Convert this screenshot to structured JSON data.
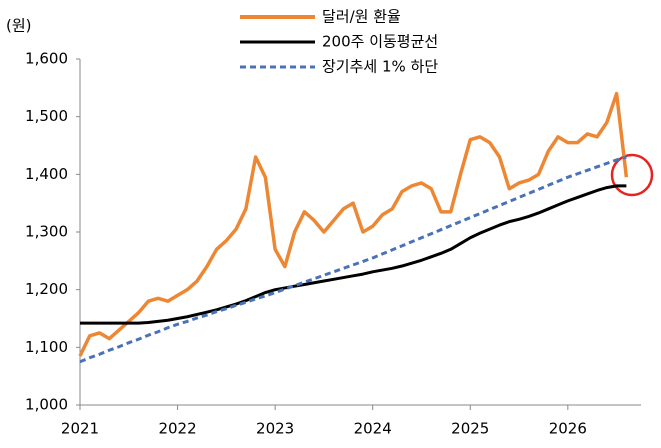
{
  "chart_data": {
    "type": "line",
    "y_label": "(원)",
    "x": [
      2021.0,
      2021.1,
      2021.2,
      2021.3,
      2021.4,
      2021.5,
      2021.6,
      2021.7,
      2021.8,
      2021.9,
      2022.0,
      2022.1,
      2022.2,
      2022.3,
      2022.4,
      2022.5,
      2022.6,
      2022.7,
      2022.8,
      2022.9,
      2023.0,
      2023.1,
      2023.2,
      2023.3,
      2023.4,
      2023.5,
      2023.6,
      2023.7,
      2023.8,
      2023.9,
      2024.0,
      2024.1,
      2024.2,
      2024.3,
      2024.4,
      2024.5,
      2024.6,
      2024.7,
      2024.8,
      2024.9,
      2025.0,
      2025.1,
      2025.2,
      2025.3,
      2025.4,
      2025.5,
      2025.6,
      2025.7,
      2025.8,
      2025.9,
      2026.0,
      2026.1,
      2026.2,
      2026.3,
      2026.4,
      2026.5,
      2026.6
    ],
    "series": [
      {
        "name": "달러/원 환율",
        "color": "#ed8733",
        "style": "solid",
        "values": [
          1085,
          1120,
          1125,
          1115,
          1130,
          1145,
          1160,
          1180,
          1185,
          1180,
          1190,
          1200,
          1215,
          1240,
          1270,
          1285,
          1305,
          1340,
          1430,
          1395,
          1270,
          1240,
          1300,
          1335,
          1320,
          1300,
          1320,
          1340,
          1350,
          1300,
          1310,
          1330,
          1340,
          1370,
          1380,
          1385,
          1375,
          1335,
          1335,
          1400,
          1460,
          1465,
          1455,
          1430,
          1375,
          1385,
          1390,
          1400,
          1440,
          1465,
          1455,
          1455,
          1470,
          1465,
          1490,
          1540,
          1395
        ]
      },
      {
        "name": "200주 이동평균선",
        "color": "#000000",
        "style": "solid",
        "values": [
          1142,
          1142,
          1142,
          1142,
          1142,
          1142,
          1142,
          1143,
          1145,
          1147,
          1150,
          1153,
          1157,
          1161,
          1165,
          1170,
          1175,
          1181,
          1188,
          1195,
          1200,
          1203,
          1206,
          1209,
          1212,
          1215,
          1218,
          1221,
          1224,
          1227,
          1231,
          1234,
          1237,
          1241,
          1246,
          1251,
          1257,
          1263,
          1270,
          1280,
          1290,
          1298,
          1305,
          1312,
          1318,
          1322,
          1327,
          1333,
          1340,
          1347,
          1354,
          1360,
          1366,
          1372,
          1377,
          1380,
          1380
        ]
      },
      {
        "name": "장기추세 1% 하단",
        "color": "#4a72b8",
        "style": "dashed",
        "values": [
          1075,
          1082,
          1088,
          1095,
          1101,
          1108,
          1114,
          1121,
          1127,
          1134,
          1140,
          1145,
          1151,
          1156,
          1162,
          1167,
          1173,
          1178,
          1184,
          1189,
          1195,
          1201,
          1207,
          1213,
          1219,
          1225,
          1231,
          1237,
          1243,
          1249,
          1255,
          1262,
          1269,
          1276,
          1283,
          1290,
          1297,
          1304,
          1311,
          1318,
          1325,
          1332,
          1339,
          1346,
          1353,
          1360,
          1367,
          1374,
          1381,
          1388,
          1395,
          1401,
          1407,
          1413,
          1419,
          1425,
          1430
        ]
      }
    ],
    "xlim": [
      2021,
      2026.75
    ],
    "xticks": [
      2021,
      2022,
      2023,
      2024,
      2025,
      2026
    ],
    "ylim": [
      1000,
      1600
    ],
    "yticks": [
      {
        "value": 1000,
        "label": "1,000"
      },
      {
        "value": 1100,
        "label": "1,100"
      },
      {
        "value": 1200,
        "label": "1,200"
      },
      {
        "value": 1300,
        "label": "1,300"
      },
      {
        "value": 1400,
        "label": "1,400"
      },
      {
        "value": 1500,
        "label": "1,500"
      },
      {
        "value": 1600,
        "label": "1,600"
      }
    ],
    "grid": false,
    "legend": "top"
  }
}
